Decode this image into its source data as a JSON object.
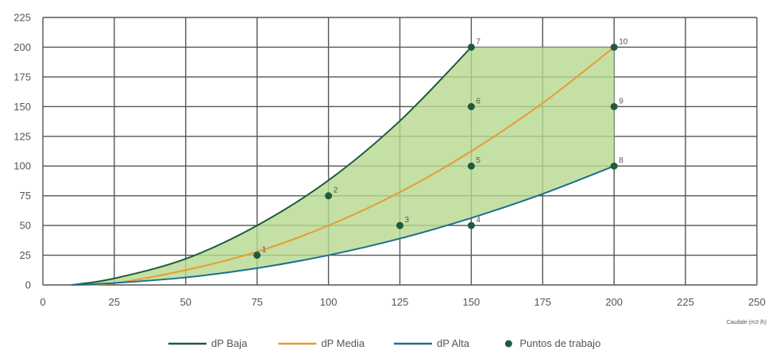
{
  "chart_data": {
    "type": "line",
    "title": "",
    "xlabel": "Caudale (m3 /h)",
    "ylabel": "",
    "xlim": [
      0,
      250
    ],
    "ylim": [
      0,
      225
    ],
    "x_ticks": [
      0,
      25,
      50,
      75,
      100,
      125,
      150,
      175,
      200,
      225,
      250
    ],
    "y_ticks": [
      0,
      25,
      50,
      75,
      100,
      125,
      150,
      175,
      200,
      225
    ],
    "grid": true,
    "legend_position": "bottom",
    "fill_region": {
      "color": "#b5d88f",
      "bounded_by": [
        "dP Baja",
        "dP Alta"
      ],
      "top": 200
    },
    "series": [
      {
        "name": "dP Baja",
        "color": "#1e5b3c",
        "type": "line",
        "x": [
          10,
          25,
          50,
          75,
          100,
          125,
          150
        ],
        "y": [
          0,
          5.5,
          22,
          50,
          88,
          138,
          200
        ]
      },
      {
        "name": "dP Media",
        "color": "#e89b35",
        "type": "line",
        "x": [
          10,
          25,
          50,
          75,
          100,
          125,
          150,
          175,
          200
        ],
        "y": [
          0,
          1.5,
          12.5,
          28,
          50,
          78,
          112.5,
          153,
          200
        ]
      },
      {
        "name": "dP Alta",
        "color": "#1a6f8e",
        "type": "line",
        "x": [
          10,
          25,
          50,
          75,
          100,
          125,
          150,
          175,
          200
        ],
        "y": [
          0,
          1.6,
          6.3,
          14.1,
          25,
          39,
          56.3,
          76.6,
          100
        ]
      },
      {
        "name": "Puntos de trabajo",
        "color": "#1e5b3c",
        "type": "scatter",
        "points": [
          {
            "label": "1",
            "x": 75,
            "y": 25
          },
          {
            "label": "2",
            "x": 100,
            "y": 75
          },
          {
            "label": "3",
            "x": 125,
            "y": 50
          },
          {
            "label": "4",
            "x": 150,
            "y": 50
          },
          {
            "label": "5",
            "x": 150,
            "y": 100
          },
          {
            "label": "6",
            "x": 150,
            "y": 150
          },
          {
            "label": "7",
            "x": 150,
            "y": 200
          },
          {
            "label": "8",
            "x": 200,
            "y": 100
          },
          {
            "label": "9",
            "x": 200,
            "y": 150
          },
          {
            "label": "10",
            "x": 200,
            "y": 200
          }
        ]
      }
    ]
  }
}
